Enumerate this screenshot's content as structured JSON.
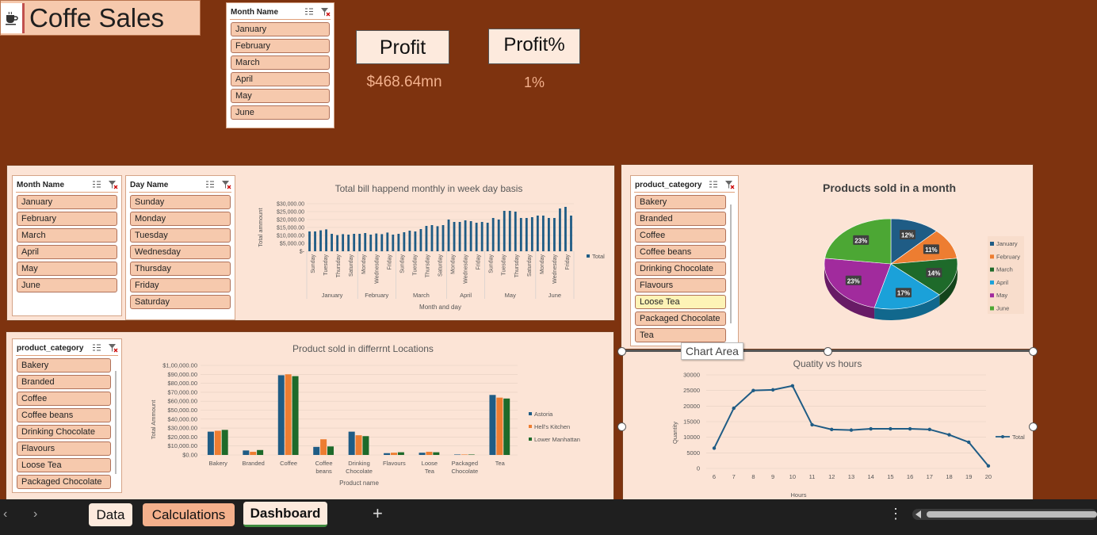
{
  "app": {
    "title": "Coffe Sales"
  },
  "slicers": {
    "month_top": {
      "title": "Month Name",
      "items": [
        "January",
        "February",
        "March",
        "April",
        "May",
        "June"
      ]
    },
    "month_mid": {
      "title": "Month Name",
      "items": [
        "January",
        "February",
        "March",
        "April",
        "May",
        "June"
      ]
    },
    "day": {
      "title": "Day Name",
      "items": [
        "Sunday",
        "Monday",
        "Tuesday",
        "Wednesday",
        "Thursday",
        "Friday",
        "Saturday"
      ]
    },
    "category_right": {
      "title": "product_category",
      "items": [
        "Bakery",
        "Branded",
        "Coffee",
        "Coffee beans",
        "Drinking Chocolate",
        "Flavours",
        "Loose Tea",
        "Packaged Chocolate",
        "Tea"
      ],
      "highlighted": "Loose Tea"
    },
    "category_left": {
      "title": "product_category",
      "items": [
        "Bakery",
        "Branded",
        "Coffee",
        "Coffee beans",
        "Drinking Chocolate",
        "Flavours",
        "Loose Tea",
        "Packaged Chocolate"
      ]
    }
  },
  "kpis": {
    "profit_label": "Profit",
    "profit_value": "$468.64mn",
    "profitpct_label": "Profit%",
    "profitpct_value": "1%"
  },
  "tooltip": "Chart Area",
  "tabs": {
    "data": "Data",
    "calculations": "Calculations",
    "dashboard": "Dashboard",
    "add": "+"
  },
  "colors": {
    "background": "#7e330f",
    "panel": "#fce4d6",
    "slicer_item": "#f6c9ad",
    "series_blue": "#1f5c85"
  },
  "chart_data": [
    {
      "type": "bar",
      "title": "Total bill happend monthly in week day basis",
      "xlabel": "Month and day",
      "ylabel": "Total ammount",
      "ylim": [
        0,
        30000
      ],
      "yticks": [
        "$30,000.00",
        "$25,000.00",
        "$20,000.00",
        "$15,000.00",
        "$10,000.00",
        "$5,000.00",
        "$-"
      ],
      "legend": "Total",
      "groups": [
        {
          "month": "January",
          "days": [
            "Sunday",
            "Tuesday",
            "Thursday",
            "Saturday"
          ],
          "values": [
            12500,
            12800,
            13800,
            11000
          ]
        },
        {
          "month": "February",
          "days": [
            "Monday",
            "Wednesday",
            "Friday"
          ],
          "values": [
            11000,
            11200,
            11800
          ]
        },
        {
          "month": "March",
          "days": [
            "Sunday",
            "Tuesday",
            "Thursday",
            "Saturday"
          ],
          "values": [
            13000,
            14000,
            16000,
            16500
          ]
        },
        {
          "month": "April",
          "days": [
            "Monday",
            "Wednesday",
            "Friday"
          ],
          "values": [
            19500,
            18000,
            18500
          ]
        },
        {
          "month": "May",
          "days": [
            "Sunday",
            "Tuesday",
            "Thursday",
            "Saturday"
          ],
          "values": [
            25500,
            25000,
            21000,
            21000
          ]
        },
        {
          "month": "June",
          "days": [
            "Monday",
            "Wednesday",
            "Friday"
          ],
          "values": [
            22500,
            21000,
            28000
          ]
        }
      ],
      "values": [
        12500,
        12500,
        13200,
        13800,
        11000,
        10200,
        10800,
        10500,
        11000,
        11000,
        11500,
        10500,
        11200,
        10800,
        11800,
        10500,
        11000,
        12000,
        13000,
        12500,
        14000,
        16000,
        16500,
        15800,
        16500,
        20000,
        18500,
        18500,
        19500,
        19000,
        18000,
        18500,
        18000,
        21000,
        20000,
        25500,
        25500,
        25000,
        21000,
        21000,
        21500,
        22500,
        22500,
        21000,
        21000,
        27000,
        28000,
        22500
      ],
      "x_ticks": [
        "Sunday",
        "Tuesday",
        "Thursday",
        "Saturday",
        "Monday",
        "Wednesday",
        "Friday",
        "Sunday",
        "Tuesday",
        "Thursday",
        "Saturday",
        "Monday",
        "Wednesday",
        "Friday",
        "Sunday",
        "Tuesday",
        "Thursday",
        "Saturday",
        "Monday",
        "Wednesday",
        "Friday"
      ]
    },
    {
      "type": "pie",
      "title": "Products sold in a month",
      "categories": [
        "January",
        "February",
        "March",
        "April",
        "May",
        "June"
      ],
      "values": [
        12,
        11,
        14,
        17,
        23,
        23
      ],
      "labels": [
        "12%",
        "11%",
        "14%",
        "17%",
        "23%",
        "23%"
      ],
      "colors": [
        "#1f5c85",
        "#ed7d31",
        "#1e6a2a",
        "#1ba1d9",
        "#a12b9d",
        "#4ca734"
      ]
    },
    {
      "type": "bar",
      "title": "Product sold in differrnt Locations",
      "xlabel": "Product name",
      "ylabel": "Total Ammount",
      "ylim": [
        0,
        100000
      ],
      "yticks": [
        "$1,00,000.00",
        "$90,000.00",
        "$80,000.00",
        "$70,000.00",
        "$60,000.00",
        "$50,000.00",
        "$40,000.00",
        "$30,000.00",
        "$20,000.00",
        "$10,000.00",
        "$0.00"
      ],
      "categories": [
        "Bakery",
        "Branded",
        "Coffee",
        "Coffee beans",
        "Drinking Chocolate",
        "Flavours",
        "Loose Tea",
        "Packaged Chocolate",
        "Tea"
      ],
      "series": [
        {
          "name": "Astoria",
          "color": "#1f5c85",
          "values": [
            26000,
            5000,
            89000,
            9000,
            26000,
            2000,
            2500,
            500,
            67000
          ]
        },
        {
          "name": "Hell's Kitchen",
          "color": "#ed7d31",
          "values": [
            27000,
            3500,
            90000,
            17500,
            22000,
            2500,
            3500,
            500,
            64000
          ]
        },
        {
          "name": "Lower Manhattan",
          "color": "#1e6a2a",
          "values": [
            28000,
            5500,
            88000,
            9500,
            21000,
            3000,
            3000,
            500,
            63000
          ]
        }
      ]
    },
    {
      "type": "line",
      "title": "Quatity vs hours",
      "xlabel": "Hours",
      "ylabel": "Quantity",
      "legend": "Total",
      "x": [
        6,
        7,
        8,
        9,
        10,
        11,
        12,
        13,
        14,
        15,
        16,
        17,
        18,
        19,
        20
      ],
      "values": [
        6500,
        19300,
        25000,
        25200,
        26500,
        14000,
        12500,
        12300,
        12700,
        12700,
        12700,
        12500,
        10800,
        8400,
        800
      ],
      "ylim": [
        0,
        30000
      ],
      "yticks": [
        "30000",
        "25000",
        "20000",
        "15000",
        "10000",
        "5000",
        "0"
      ]
    }
  ]
}
